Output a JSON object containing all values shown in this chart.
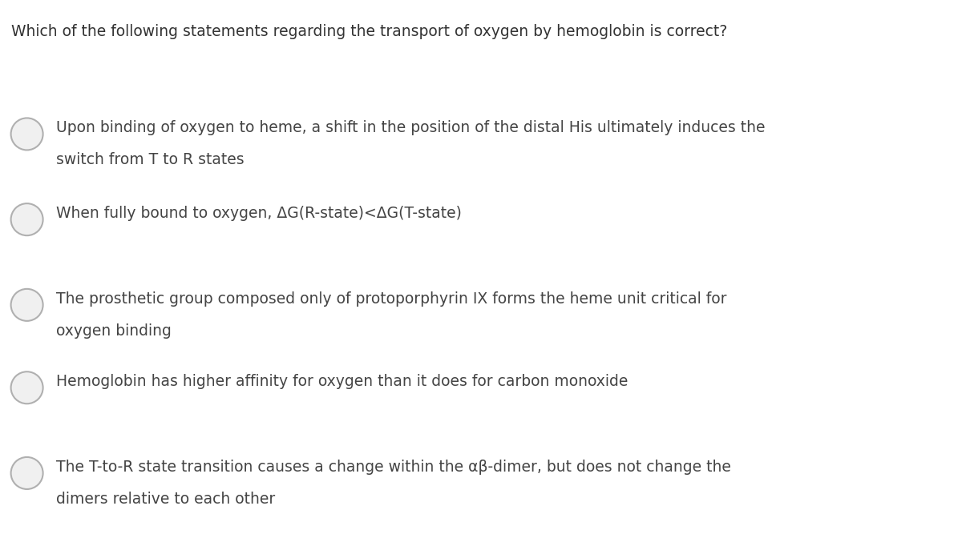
{
  "background_color": "#ffffff",
  "question": "Which of the following statements regarding the transport of oxygen by hemoglobin is correct?",
  "question_fontsize": 13.5,
  "question_color": "#333333",
  "options": [
    {
      "line1": "Upon binding of oxygen to heme, a shift in the position of the distal His ultimately induces the",
      "line2": "switch from T to R states",
      "two_lines": true
    },
    {
      "line1": "When fully bound to oxygen, ΔG(R-state)<ΔG(T-state)",
      "line2": null,
      "two_lines": false
    },
    {
      "line1": "The prosthetic group composed only of protoporphyrin IX forms the heme unit critical for",
      "line2": "oxygen binding",
      "two_lines": true
    },
    {
      "line1": "Hemoglobin has higher affinity for oxygen than it does for carbon monoxide",
      "line2": null,
      "two_lines": false
    },
    {
      "line1": "The T-to-R state transition causes a change within the αβ-dimer, but does not change the",
      "line2": "dimers relative to each other",
      "two_lines": true
    }
  ],
  "option_fontsize": 13.5,
  "option_color": "#444444",
  "circle_edge_color": "#b0b0b0",
  "circle_face_color": "#f0f0f0",
  "figsize": [
    12,
    6.67
  ],
  "dpi": 100
}
